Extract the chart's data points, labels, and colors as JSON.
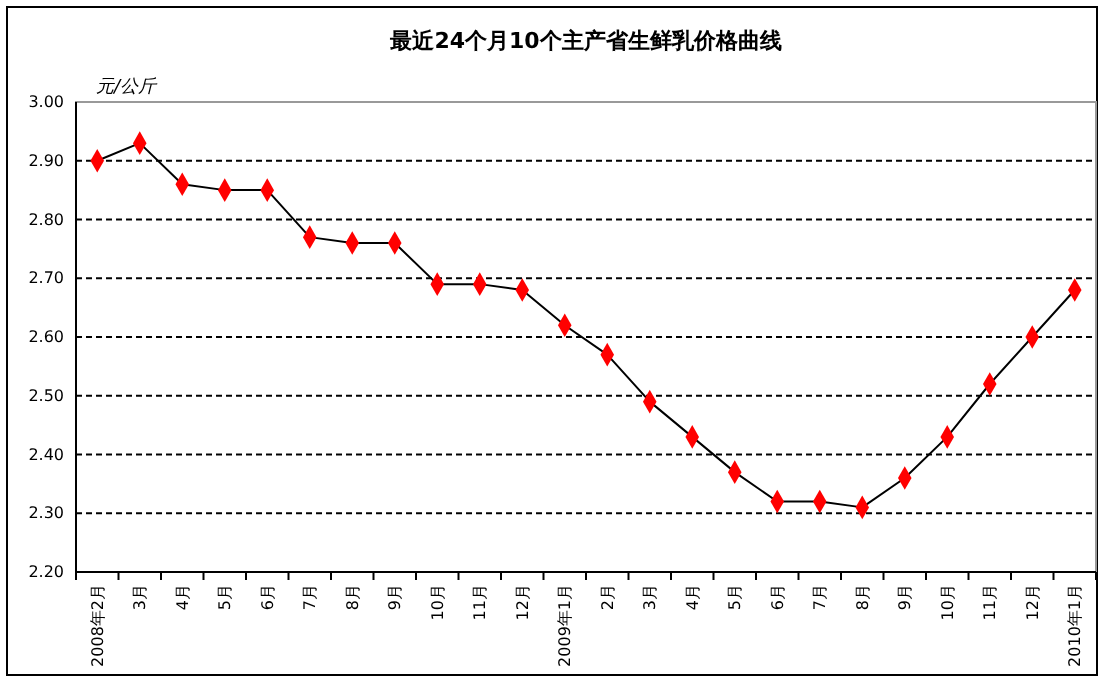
{
  "chart_data": {
    "type": "line",
    "title": "最近24个月10个主产省生鲜乳价格曲线",
    "ylabel": "元/公斤",
    "categories": [
      "2008年2月",
      "3月",
      "4月",
      "5月",
      "6月",
      "7月",
      "8月",
      "9月",
      "10月",
      "11月",
      "12月",
      "2009年1月",
      "2月",
      "3月",
      "4月",
      "5月",
      "6月",
      "7月",
      "8月",
      "9月",
      "10月",
      "11月",
      "12月",
      "2010年1月"
    ],
    "series": [
      {
        "color": "#ff0000",
        "values": [
          2.9,
          2.93,
          2.86,
          2.85,
          2.85,
          2.77,
          2.76,
          2.76,
          2.69,
          2.69,
          2.68,
          2.62,
          2.57,
          2.49,
          2.43,
          2.37,
          2.32,
          2.32,
          2.31,
          2.36,
          2.43,
          2.52,
          2.6,
          2.68
        ]
      }
    ],
    "ylim": [
      2.2,
      3.0
    ],
    "yticks": [
      {
        "value": 2.2,
        "label": "2.20"
      },
      {
        "value": 2.3,
        "label": "2.30"
      },
      {
        "value": 2.4,
        "label": "2.40"
      },
      {
        "value": 2.5,
        "label": "2.50"
      },
      {
        "value": 2.6,
        "label": "2.60"
      },
      {
        "value": 2.7,
        "label": "2.70"
      },
      {
        "value": 2.8,
        "label": "2.80"
      },
      {
        "value": 2.9,
        "label": "2.90"
      },
      {
        "value": 3.0,
        "label": "3.00"
      }
    ],
    "grid": "y",
    "marker": "diamond",
    "line_style": "solid"
  }
}
